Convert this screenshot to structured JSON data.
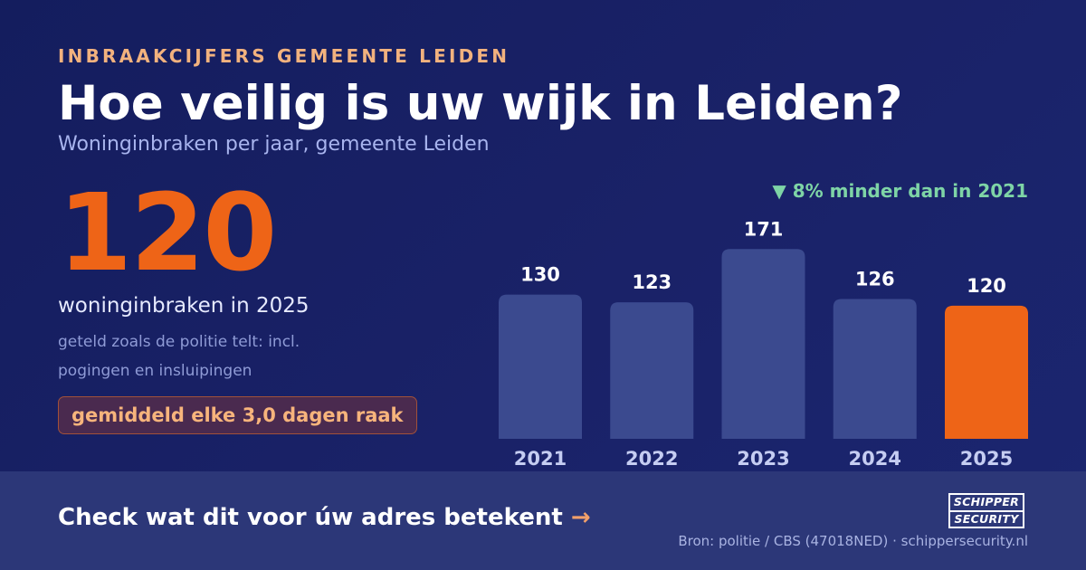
{
  "eyebrow": "INBRAAKCIJFERS GEMEENTE LEIDEN",
  "title": "Hoe veilig is uw wijk in Leiden?",
  "subtitle": "Woninginbraken per jaar, gemeente Leiden",
  "headline": {
    "value": "120",
    "caption": "woninginbraken in 2025",
    "note": "geteld zoals de politie telt: incl. pogingen en insluipingen",
    "pill": "gemiddeld elke 3,0 dagen raak"
  },
  "trend": "▼ 8% minder dan in 2021",
  "chart_data": {
    "type": "bar",
    "categories": [
      "2021",
      "2022",
      "2023",
      "2024",
      "2025"
    ],
    "values": [
      130,
      123,
      171,
      126,
      120
    ],
    "highlight_index": 4,
    "ylim": [
      0,
      190
    ],
    "grid": false,
    "bar_color": "#3b4a8f",
    "highlight_color": "#ee6417",
    "value_label_color": "#ffffff",
    "category_label_color": "#c5cdf2"
  },
  "footer": {
    "cta": "Check wat dit voor úw adres betekent",
    "cta_arrow": "→",
    "logo_line1": "SCHIPPER",
    "logo_line2": "SECURITY",
    "source": "Bron: politie / CBS (47018NED) · schippersecurity.nl"
  },
  "colors": {
    "background": "#18216a",
    "accent": "#ee6417",
    "eyebrow": "#f2b27e",
    "trend": "#7ed4a6"
  }
}
